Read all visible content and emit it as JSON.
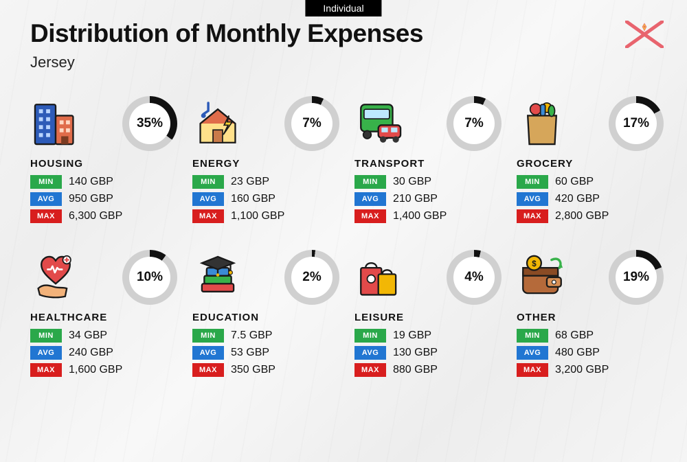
{
  "top_label": "Individual",
  "title": "Distribution of Monthly Expenses",
  "subtitle": "Jersey",
  "currency": "GBP",
  "colors": {
    "min_badge": "#2aa84a",
    "avg_badge": "#2176d2",
    "max_badge": "#d81e1e",
    "donut_track": "#d0d0d0",
    "donut_fill": "#111111",
    "text": "#111111",
    "bg_top_label": "#000000",
    "flag_red": "#e8646e",
    "flag_yellow": "#f3b744",
    "flag_bg": "#f5f5f5"
  },
  "badges": {
    "min": "MIN",
    "avg": "AVG",
    "max": "MAX"
  },
  "categories": [
    {
      "key": "housing",
      "label": "HOUSING",
      "percent": 35,
      "min": "140",
      "avg": "950",
      "max": "6,300",
      "icon": "buildings"
    },
    {
      "key": "energy",
      "label": "ENERGY",
      "percent": 7,
      "min": "23",
      "avg": "160",
      "max": "1,100",
      "icon": "house-bolt"
    },
    {
      "key": "transport",
      "label": "TRANSPORT",
      "percent": 7,
      "min": "30",
      "avg": "210",
      "max": "1,400",
      "icon": "bus-car"
    },
    {
      "key": "grocery",
      "label": "GROCERY",
      "percent": 17,
      "min": "60",
      "avg": "420",
      "max": "2,800",
      "icon": "grocery-bag"
    },
    {
      "key": "healthcare",
      "label": "HEALTHCARE",
      "percent": 10,
      "min": "34",
      "avg": "240",
      "max": "1,600",
      "icon": "heart-hand"
    },
    {
      "key": "education",
      "label": "EDUCATION",
      "percent": 2,
      "min": "7.5",
      "avg": "53",
      "max": "350",
      "icon": "books-cap"
    },
    {
      "key": "leisure",
      "label": "LEISURE",
      "percent": 4,
      "min": "19",
      "avg": "130",
      "max": "880",
      "icon": "shopping-bags"
    },
    {
      "key": "other",
      "label": "OTHER",
      "percent": 19,
      "min": "68",
      "avg": "480",
      "max": "3,200",
      "icon": "wallet-coin"
    }
  ]
}
